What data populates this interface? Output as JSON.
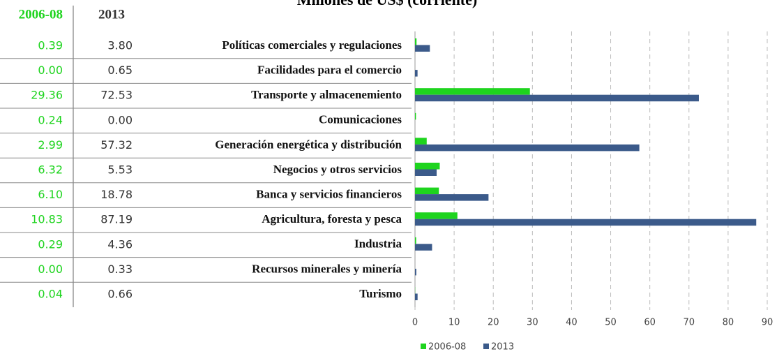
{
  "chart_data": {
    "type": "bar",
    "orientation": "horizontal",
    "title": "Millones de US$ (corriente)",
    "categories": [
      "Políticas comerciales y regulaciones",
      "Facilidades para el comercio",
      "Transporte y almacenemiento",
      "Comunicaciones",
      "Generación energética y distribución",
      "Negocios y otros servicios",
      "Banca y servicios financieros",
      "Agricultura, foresta y pesca",
      "Industria",
      "Recursos minerales y minería",
      "Turismo"
    ],
    "series": [
      {
        "name": "2006-08",
        "color": "#1ed41e",
        "values": [
          0.39,
          0,
          29.36,
          0.24,
          2.99,
          6.32,
          6.1,
          10.83,
          0.29,
          0,
          0.04
        ],
        "value_labels": [
          "0.39",
          "0.00",
          "29.36",
          "0.24",
          "2.99",
          "6.32",
          "6.10",
          "10.83",
          "0.29",
          "0.00",
          "0.04"
        ]
      },
      {
        "name": "2013",
        "color": "#3b5a8a",
        "values": [
          3.8,
          0.65,
          72.53,
          0,
          57.32,
          5.53,
          18.78,
          87.19,
          4.36,
          0.33,
          0.66
        ],
        "value_labels": [
          "3.80",
          "0.65",
          "72.53",
          "0.00",
          "57.32",
          "5.53",
          "18.78",
          "87.19",
          "4.36",
          "0.33",
          "0.66"
        ]
      }
    ],
    "xlim": [
      0,
      90
    ],
    "xticks": [
      0,
      10,
      20,
      30,
      40,
      50,
      60,
      70,
      80,
      90
    ],
    "grid": true,
    "legend": "bottom"
  }
}
